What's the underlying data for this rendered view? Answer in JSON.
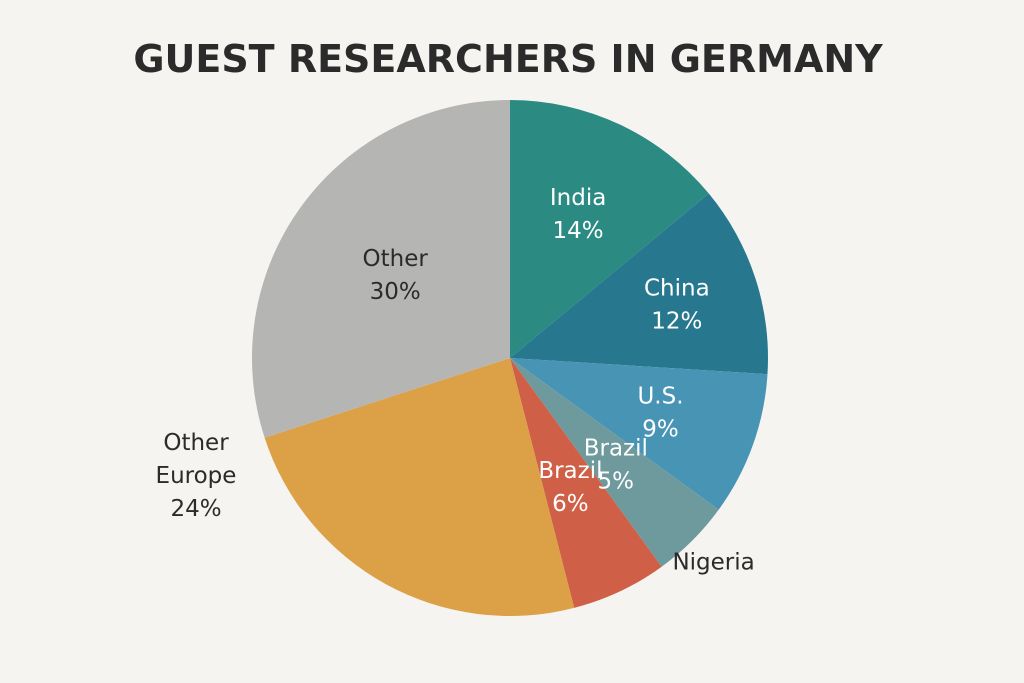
{
  "chart_data": {
    "type": "pie",
    "title": "GUEST RESEARCHERS IN GERMANY",
    "slices": [
      {
        "label": [
          "India",
          "14%"
        ],
        "value": 14,
        "color": "#2b8a82",
        "label_color": "#ffffff"
      },
      {
        "label": [
          "China",
          "12%"
        ],
        "value": 12,
        "color": "#27788f",
        "label_color": "#ffffff"
      },
      {
        "label": [
          "U.S.",
          "9%"
        ],
        "value": 9,
        "color": "#4794b5",
        "label_color": "#ffffff"
      },
      {
        "label": [
          "Brazil",
          "5%"
        ],
        "value": 5,
        "color": "#6f9a9d",
        "label_color": "#ffffff"
      },
      {
        "label": [
          "Brazil",
          "6%"
        ],
        "value": 6,
        "color": "#cf5f46",
        "label_color": "#ffffff"
      },
      {
        "label": [
          "Other",
          "Europe",
          "24%"
        ],
        "value": 24,
        "color": "#dca046",
        "label_color": "#2b2b2b",
        "label_outside": true
      },
      {
        "label": [
          "Other",
          "30%"
        ],
        "value": 30,
        "color": "#b5b5b3",
        "label_color": "#2b2b2b"
      }
    ],
    "annotations": [
      {
        "text": "Nigeria",
        "near_slice": 3
      }
    ],
    "start_angle": "12 o'clock",
    "direction": "clockwise"
  }
}
